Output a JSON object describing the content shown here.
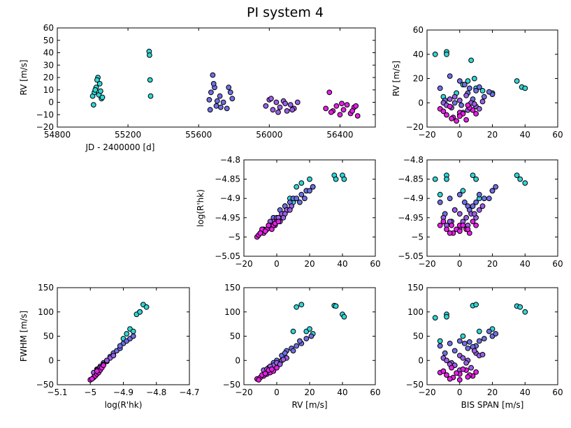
{
  "figure_title": "PI system 4",
  "chart_data": [
    {
      "id": "rv_time",
      "type": "scatter",
      "xlabel": "JD - 2400000 [d]",
      "ylabel": "RV [m/s]",
      "xlim": [
        54800,
        56600
      ],
      "ylim": [
        -20,
        60
      ],
      "xticks": [
        54800,
        55200,
        55600,
        56000,
        56400
      ],
      "yticks": [
        -20,
        -10,
        0,
        10,
        20,
        30,
        40,
        50,
        60
      ],
      "series": [
        {
          "name": "cyan epoch",
          "color": "#2fd6d6",
          "x": [
            55000,
            55010,
            55020,
            55030,
            55040,
            55050,
            55005,
            55015,
            55025,
            55035,
            55045,
            55055,
            55320,
            55322,
            55325,
            55328
          ],
          "y": [
            5,
            8,
            12,
            20,
            15,
            3,
            -2,
            10,
            18,
            6,
            9,
            4,
            41,
            38,
            18,
            5
          ]
        },
        {
          "name": "slate-blue epoch",
          "color": "#6f6fe6",
          "x": [
            55660,
            55670,
            55680,
            55690,
            55700,
            55720,
            55740,
            55760,
            55770,
            55780,
            55790,
            55665,
            55685,
            55705,
            55725
          ],
          "y": [
            2,
            8,
            22,
            12,
            -3,
            5,
            0,
            -5,
            12,
            8,
            3,
            -6,
            15,
            1,
            -4
          ]
        },
        {
          "name": "violet epoch",
          "color": "#9b5ee8",
          "x": [
            55980,
            56000,
            56020,
            56040,
            56060,
            56080,
            56100,
            56120,
            56140,
            56160,
            56010,
            56050,
            56090,
            56130
          ],
          "y": [
            -3,
            2,
            -6,
            0,
            -4,
            1,
            -7,
            -2,
            -5,
            0,
            3,
            -8,
            -1,
            -6
          ]
        },
        {
          "name": "magenta epoch",
          "color": "#e81ee8",
          "x": [
            56320,
            56340,
            56360,
            56380,
            56400,
            56420,
            56440,
            56460,
            56480,
            56500,
            56350,
            56410,
            56470,
            56490
          ],
          "y": [
            -5,
            8,
            -7,
            -3,
            -10,
            -6,
            -2,
            -9,
            -4,
            -11,
            -8,
            -1,
            -7,
            -3
          ]
        }
      ]
    },
    {
      "id": "rv_bis",
      "type": "scatter",
      "xlabel": "",
      "ylabel": "RV [m/s]",
      "xlim": [
        -20,
        60
      ],
      "ylim": [
        -20,
        60
      ],
      "xticks": [
        -20,
        0,
        20,
        40,
        60
      ],
      "yticks": [
        -20,
        0,
        20,
        40,
        60
      ],
      "series": [
        {
          "name": "cyan",
          "color": "#2fd6d6",
          "x": [
            -15,
            -8,
            -8,
            7,
            9,
            35,
            38,
            40,
            10,
            -2,
            5,
            14,
            20,
            -10,
            2
          ],
          "y": [
            40,
            42,
            40,
            35,
            20,
            18,
            13,
            12,
            12,
            8,
            18,
            10,
            8,
            5,
            15
          ]
        },
        {
          "name": "slate-blue",
          "color": "#6f6fe6",
          "x": [
            -12,
            -6,
            0,
            5,
            10,
            15,
            20,
            3,
            -3,
            8,
            12,
            -9,
            1,
            6,
            18
          ],
          "y": [
            12,
            22,
            18,
            8,
            10,
            5,
            7,
            15,
            0,
            3,
            13,
            2,
            -2,
            12,
            9
          ]
        },
        {
          "name": "violet",
          "color": "#9b5ee8",
          "x": [
            -10,
            -5,
            0,
            5,
            10,
            -3,
            2,
            7,
            -8,
            4,
            12,
            0,
            -6,
            9,
            14
          ],
          "y": [
            0,
            -4,
            2,
            -6,
            -3,
            5,
            -8,
            0,
            -2,
            6,
            -5,
            -10,
            3,
            -1,
            1
          ]
        },
        {
          "name": "magenta",
          "color": "#e81ee8",
          "x": [
            -12,
            -8,
            -4,
            0,
            4,
            8,
            -6,
            -2,
            2,
            6,
            -10,
            0,
            -5,
            5,
            10
          ],
          "y": [
            -5,
            -10,
            -12,
            -8,
            -14,
            -6,
            -3,
            -15,
            -9,
            -4,
            -7,
            -11,
            -13,
            -2,
            -9
          ]
        }
      ]
    },
    {
      "id": "logr_rv",
      "type": "scatter",
      "xlabel": "",
      "ylabel": "log(R'hk)",
      "xlim": [
        -20,
        60
      ],
      "ylim": [
        -5.05,
        -4.8
      ],
      "xticks": [
        -20,
        0,
        20,
        40,
        60
      ],
      "yticks": [
        -5.05,
        -5.0,
        -4.95,
        -4.9,
        -4.85,
        -4.8
      ],
      "series": [
        {
          "name": "cyan",
          "color": "#2fd6d6",
          "x": [
            35,
            36,
            40,
            41,
            15,
            12,
            20,
            18,
            8,
            10,
            5,
            22
          ],
          "y": [
            -4.84,
            -4.85,
            -4.84,
            -4.85,
            -4.86,
            -4.87,
            -4.85,
            -4.88,
            -4.9,
            -4.91,
            -4.92,
            -4.87
          ]
        },
        {
          "name": "slate-blue",
          "color": "#6f6fe6",
          "x": [
            -2,
            2,
            5,
            8,
            10,
            12,
            15,
            18,
            20,
            22,
            0,
            4,
            7,
            14,
            17
          ],
          "y": [
            -4.95,
            -4.93,
            -4.92,
            -4.91,
            -4.9,
            -4.9,
            -4.89,
            -4.88,
            -4.88,
            -4.87,
            -4.96,
            -4.94,
            -4.93,
            -4.91,
            -4.9
          ]
        },
        {
          "name": "violet",
          "color": "#9b5ee8",
          "x": [
            -8,
            -5,
            -2,
            0,
            3,
            6,
            9,
            -4,
            1,
            5,
            -6,
            2,
            8,
            4,
            -1
          ],
          "y": [
            -4.98,
            -4.97,
            -4.96,
            -4.95,
            -4.94,
            -4.93,
            -4.92,
            -4.96,
            -4.95,
            -4.94,
            -4.98,
            -4.96,
            -4.93,
            -4.95,
            -4.97
          ]
        },
        {
          "name": "magenta",
          "color": "#e81ee8",
          "x": [
            -12,
            -10,
            -8,
            -6,
            -4,
            -2,
            0,
            -11,
            -9,
            -7,
            -5,
            -3,
            -1,
            1,
            -10
          ],
          "y": [
            -5.0,
            -4.99,
            -4.99,
            -4.98,
            -4.97,
            -4.97,
            -4.96,
            -4.995,
            -4.98,
            -4.985,
            -4.97,
            -4.98,
            -4.965,
            -4.96,
            -4.99
          ]
        }
      ]
    },
    {
      "id": "logr_bis",
      "type": "scatter",
      "xlabel": "",
      "ylabel": "",
      "xlim": [
        -20,
        60
      ],
      "ylim": [
        -5.05,
        -4.8
      ],
      "xticks": [
        -20,
        0,
        20,
        40,
        60
      ],
      "yticks": [
        -5.05,
        -5.0,
        -4.95,
        -4.9,
        -4.85,
        -4.8
      ],
      "series": [
        {
          "name": "cyan",
          "color": "#2fd6d6",
          "x": [
            -15,
            -8,
            -8,
            8,
            10,
            35,
            37,
            40,
            20,
            2,
            12,
            -12
          ],
          "y": [
            -4.85,
            -4.84,
            -4.85,
            -4.84,
            -4.85,
            -4.84,
            -4.85,
            -4.86,
            -4.88,
            -4.88,
            -4.9,
            -4.89
          ]
        },
        {
          "name": "slate-blue",
          "color": "#6f6fe6",
          "x": [
            -12,
            -6,
            0,
            5,
            10,
            15,
            20,
            22,
            -3,
            3,
            8,
            12,
            18,
            -9,
            6
          ],
          "y": [
            -4.91,
            -4.9,
            -4.89,
            -4.92,
            -4.91,
            -4.9,
            -4.88,
            -4.87,
            -4.93,
            -4.91,
            -4.92,
            -4.89,
            -4.9,
            -4.94,
            -4.93
          ]
        },
        {
          "name": "violet",
          "color": "#9b5ee8",
          "x": [
            -10,
            -5,
            0,
            5,
            10,
            -3,
            2,
            7,
            -8,
            4,
            12,
            0,
            -6,
            9,
            14
          ],
          "y": [
            -4.95,
            -4.96,
            -4.94,
            -4.97,
            -4.95,
            -4.93,
            -4.96,
            -4.94,
            -4.97,
            -4.95,
            -4.93,
            -4.98,
            -4.96,
            -4.94,
            -4.92
          ]
        },
        {
          "name": "magenta",
          "color": "#e81ee8",
          "x": [
            -12,
            -8,
            -4,
            0,
            4,
            8,
            -6,
            -2,
            2,
            6,
            -10,
            0,
            -5,
            5,
            10
          ],
          "y": [
            -4.97,
            -4.98,
            -4.99,
            -4.97,
            -4.98,
            -4.96,
            -4.99,
            -4.98,
            -4.97,
            -4.99,
            -4.96,
            -4.985,
            -4.97,
            -4.98,
            -4.97
          ]
        }
      ]
    },
    {
      "id": "fwhm_logr",
      "type": "scatter",
      "xlabel": "log(R'hk)",
      "ylabel": "FWHM [m/s]",
      "xlim": [
        -5.1,
        -4.7
      ],
      "ylim": [
        -50,
        150
      ],
      "xticks": [
        -5.1,
        -5.0,
        -4.9,
        -4.8,
        -4.7
      ],
      "yticks": [
        -50,
        0,
        50,
        100,
        150
      ],
      "series": [
        {
          "name": "cyan",
          "color": "#2fd6d6",
          "x": [
            -4.84,
            -4.83,
            -4.85,
            -4.86,
            -4.88,
            -4.87,
            -4.85,
            -4.9,
            -4.89
          ],
          "y": [
            115,
            110,
            100,
            95,
            65,
            60,
            100,
            45,
            55
          ]
        },
        {
          "name": "slate-blue",
          "color": "#6f6fe6",
          "x": [
            -4.96,
            -4.95,
            -4.94,
            -4.93,
            -4.92,
            -4.91,
            -4.9,
            -4.89,
            -4.88,
            -4.87,
            -4.93,
            -4.91
          ],
          "y": [
            -5,
            0,
            8,
            15,
            20,
            25,
            35,
            40,
            45,
            50,
            10,
            30
          ]
        },
        {
          "name": "violet",
          "color": "#9b5ee8",
          "x": [
            -4.99,
            -4.98,
            -4.97,
            -4.96,
            -4.95,
            -4.94,
            -4.93,
            -4.97,
            -4.95,
            -4.98
          ],
          "y": [
            -25,
            -18,
            -12,
            -8,
            -2,
            5,
            10,
            -15,
            0,
            -20
          ]
        },
        {
          "name": "magenta",
          "color": "#e81ee8",
          "x": [
            -5.0,
            -4.99,
            -4.985,
            -4.98,
            -4.975,
            -4.97,
            -4.965,
            -4.96,
            -4.995,
            -4.98
          ],
          "y": [
            -40,
            -35,
            -32,
            -28,
            -25,
            -20,
            -15,
            -10,
            -38,
            -22
          ]
        }
      ]
    },
    {
      "id": "fwhm_rv",
      "type": "scatter",
      "xlabel": "RV [m/s]",
      "ylabel": "",
      "xlim": [
        -20,
        60
      ],
      "ylim": [
        -50,
        150
      ],
      "xticks": [
        -20,
        0,
        20,
        40,
        60
      ],
      "yticks": [
        -50,
        0,
        50,
        100,
        150
      ],
      "series": [
        {
          "name": "cyan",
          "color": "#2fd6d6",
          "x": [
            35,
            36,
            40,
            41,
            15,
            12,
            18,
            20,
            10,
            22
          ],
          "y": [
            113,
            112,
            95,
            90,
            115,
            110,
            60,
            65,
            60,
            55
          ]
        },
        {
          "name": "slate-blue",
          "color": "#6f6fe6",
          "x": [
            0,
            3,
            6,
            9,
            12,
            15,
            18,
            21,
            5,
            10,
            14,
            -2
          ],
          "y": [
            0,
            10,
            20,
            25,
            30,
            35,
            45,
            50,
            15,
            20,
            40,
            -5
          ]
        },
        {
          "name": "violet",
          "color": "#9b5ee8",
          "x": [
            -8,
            -5,
            -2,
            0,
            3,
            6,
            -4,
            2,
            -6,
            4
          ],
          "y": [
            -20,
            -15,
            -10,
            -5,
            0,
            5,
            -12,
            -8,
            -18,
            2
          ]
        },
        {
          "name": "magenta",
          "color": "#e81ee8",
          "x": [
            -12,
            -10,
            -8,
            -6,
            -4,
            -2,
            0,
            -11,
            -9,
            -7,
            -5,
            -3
          ],
          "y": [
            -38,
            -35,
            -32,
            -28,
            -25,
            -22,
            -15,
            -40,
            -30,
            -27,
            -20,
            -18
          ]
        }
      ]
    },
    {
      "id": "fwhm_bis",
      "type": "scatter",
      "xlabel": "BIS SPAN [m/s]",
      "ylabel": "",
      "xlim": [
        -20,
        60
      ],
      "ylim": [
        -50,
        150
      ],
      "xticks": [
        -20,
        0,
        20,
        40,
        60
      ],
      "yticks": [
        -50,
        0,
        50,
        100,
        150
      ],
      "series": [
        {
          "name": "cyan",
          "color": "#2fd6d6",
          "x": [
            -15,
            -8,
            -8,
            8,
            10,
            35,
            37,
            40,
            20,
            12,
            2,
            -12
          ],
          "y": [
            88,
            95,
            90,
            113,
            115,
            112,
            110,
            100,
            65,
            60,
            50,
            40
          ]
        },
        {
          "name": "slate-blue",
          "color": "#6f6fe6",
          "x": [
            -12,
            -6,
            0,
            5,
            10,
            15,
            20,
            22,
            -3,
            3,
            8,
            12,
            18,
            -9,
            6
          ],
          "y": [
            30,
            35,
            40,
            25,
            30,
            45,
            50,
            55,
            20,
            35,
            28,
            40,
            60,
            15,
            38
          ]
        },
        {
          "name": "violet",
          "color": "#9b5ee8",
          "x": [
            -10,
            -5,
            0,
            5,
            10,
            -3,
            2,
            7,
            -8,
            4,
            12,
            0,
            -6,
            9,
            14
          ],
          "y": [
            5,
            -5,
            10,
            0,
            15,
            -10,
            5,
            -15,
            0,
            -5,
            10,
            -20,
            -8,
            20,
            12
          ]
        },
        {
          "name": "magenta",
          "color": "#e81ee8",
          "x": [
            -12,
            -8,
            -4,
            0,
            4,
            8,
            -6,
            -2,
            2,
            6,
            -10,
            0,
            -5,
            5,
            10
          ],
          "y": [
            -25,
            -30,
            -35,
            -28,
            -20,
            -32,
            -38,
            -26,
            -18,
            -30,
            -22,
            -40,
            -15,
            -34,
            -24
          ]
        }
      ]
    }
  ]
}
